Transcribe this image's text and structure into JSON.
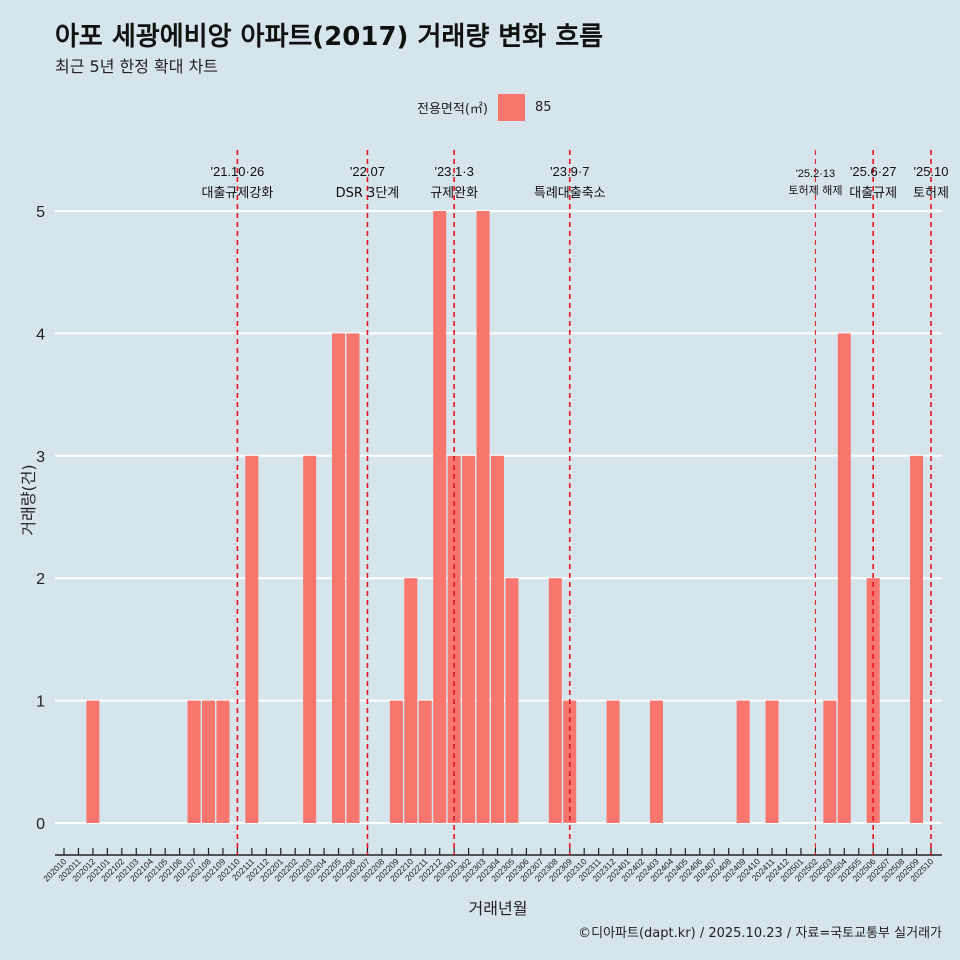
{
  "title": "아포 세광에비앙 아파트(2017) 거래량 변화 흐름",
  "subtitle": "최근 5년 한정 확대 차트",
  "legend": {
    "title": "전용면적(㎡)",
    "label": "85",
    "color": "#f8766d"
  },
  "caption": "©디아파트(dapt.kr) / 2025.10.23 / 자료=국토교통부 실거래가",
  "chart_data": {
    "type": "bar",
    "xlabel": "거래년월",
    "ylabel": "거래량(건)",
    "ylim": [
      0,
      5
    ],
    "yticks": [
      0,
      1,
      2,
      3,
      4,
      5
    ],
    "categories": [
      "202010",
      "202011",
      "202012",
      "202101",
      "202102",
      "202103",
      "202104",
      "202105",
      "202106",
      "202107",
      "202108",
      "202109",
      "202110",
      "202111",
      "202112",
      "202201",
      "202202",
      "202203",
      "202204",
      "202205",
      "202206",
      "202207",
      "202208",
      "202209",
      "202210",
      "202211",
      "202212",
      "202301",
      "202302",
      "202303",
      "202304",
      "202305",
      "202306",
      "202307",
      "202308",
      "202309",
      "202310",
      "202311",
      "202312",
      "202401",
      "202402",
      "202403",
      "202404",
      "202405",
      "202406",
      "202407",
      "202408",
      "202409",
      "202410",
      "202411",
      "202412",
      "202501",
      "202502",
      "202503",
      "202504",
      "202505",
      "202506",
      "202507",
      "202508",
      "202509",
      "202510"
    ],
    "values": [
      0,
      0,
      1,
      0,
      0,
      0,
      0,
      0,
      0,
      1,
      1,
      1,
      0,
      3,
      0,
      0,
      0,
      3,
      0,
      4,
      4,
      0,
      0,
      1,
      2,
      1,
      5,
      3,
      3,
      5,
      3,
      2,
      0,
      0,
      2,
      1,
      0,
      0,
      1,
      0,
      0,
      1,
      0,
      0,
      0,
      0,
      0,
      1,
      0,
      1,
      0,
      0,
      0,
      1,
      4,
      0,
      2,
      0,
      0,
      3,
      0
    ],
    "events": [
      {
        "month": "202110",
        "date": "'21.10·26",
        "label": "대출규제강화",
        "small": false
      },
      {
        "month": "202207",
        "date": "'22.07",
        "label": "DSR 3단계",
        "small": false
      },
      {
        "month": "202301",
        "date": "'23.1·3",
        "label": "규제완화",
        "small": false
      },
      {
        "month": "202309",
        "date": "'23.9·7",
        "label": "특례대출축소",
        "small": false
      },
      {
        "month": "202502",
        "date": "'25.2·13",
        "label": "토허제 해제",
        "small": true
      },
      {
        "month": "202506",
        "date": "'25.6·27",
        "label": "대출규제",
        "small": false
      },
      {
        "month": "202510",
        "date": "'25.10",
        "label": "토허제",
        "small": false
      }
    ]
  }
}
